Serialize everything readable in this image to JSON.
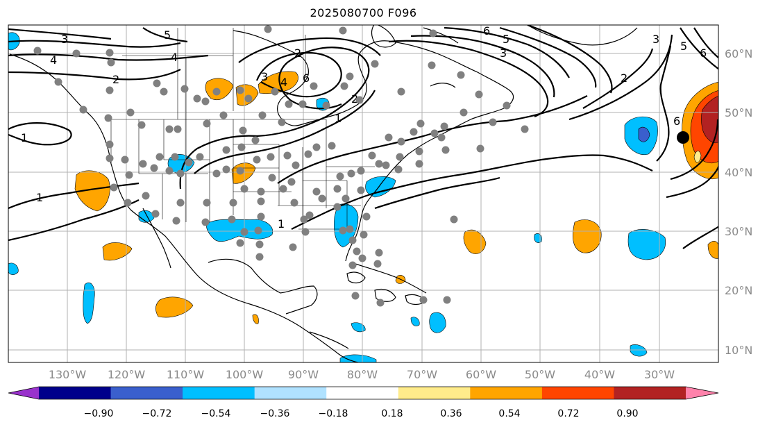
{
  "title": "2025080700 F096",
  "map": {
    "lon_labels": [
      "130°W",
      "120°W",
      "110°W",
      "100°W",
      "90°W",
      "80°W",
      "70°W",
      "60°W",
      "50°W",
      "40°W",
      "30°W"
    ],
    "lat_labels": [
      "60°N",
      "50°N",
      "40°N",
      "30°N",
      "20°N",
      "10°N"
    ],
    "contour_labels": [
      "1",
      "1",
      "1",
      "1",
      "2",
      "2",
      "2",
      "2",
      "3",
      "3",
      "3",
      "3",
      "4",
      "4",
      "4",
      "5",
      "5",
      "5",
      "6",
      "6",
      "6",
      "6"
    ],
    "station_marker_color": "#808080",
    "highlight_marker_color": "#000000"
  },
  "colorbar": {
    "ticks": [
      "−0.90",
      "−0.72",
      "−0.54",
      "−0.36",
      "−0.18",
      "0.18",
      "0.36",
      "0.54",
      "0.72",
      "0.90"
    ],
    "colors": [
      "#9932cc",
      "#00008b",
      "#3a5fcd",
      "#00bfff",
      "#b0e2ff",
      "#ffffff",
      "#ffec8b",
      "#ffa500",
      "#ff4500",
      "#b22222",
      "#ff82ab"
    ]
  }
}
